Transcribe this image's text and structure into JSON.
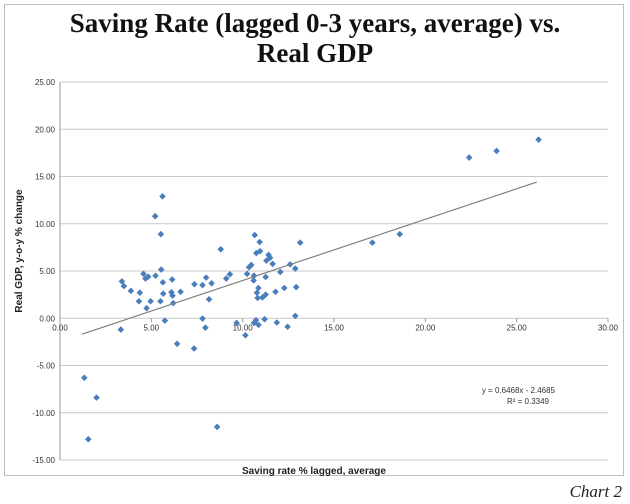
{
  "chart_data": {
    "type": "scatter",
    "title_lines": [
      "Saving Rate (lagged 0-3 years, average) vs.",
      "Real GDP"
    ],
    "xlabel": "Saving rate % lagged, average",
    "ylabel": "Real GDP, y-o-y % change",
    "xlim": [
      0,
      30
    ],
    "ylim": [
      -15,
      25
    ],
    "x_ticks": [
      "0.00",
      "5.00",
      "10.00",
      "15.00",
      "20.00",
      "25.00",
      "30.00"
    ],
    "y_ticks": [
      "25.00",
      "20.00",
      "15.00",
      "10.00",
      "5.00",
      "0.00",
      "-5.00",
      "-10.00",
      "-15.00"
    ],
    "grid": "horizontal",
    "marker_color": "#4a7ebb",
    "trendline": {
      "slope": 0.6468,
      "intercept": -2.4685,
      "x_range": [
        1.2,
        26.1
      ],
      "color": "#7f7f7f"
    },
    "equation_lines": [
      "y = 0.6468x - 2.4685",
      "R² = 0.3349"
    ],
    "points": [
      [
        5.61,
        12.9
      ],
      [
        5.21,
        10.8
      ],
      [
        5.52,
        8.9
      ],
      [
        8.8,
        7.3
      ],
      [
        5.54,
        5.15
      ],
      [
        4.57,
        4.7
      ],
      [
        4.83,
        4.4
      ],
      [
        4.68,
        4.2
      ],
      [
        5.23,
        4.5
      ],
      [
        3.39,
        3.9
      ],
      [
        3.5,
        3.4
      ],
      [
        3.88,
        2.9
      ],
      [
        4.37,
        2.7
      ],
      [
        4.32,
        1.8
      ],
      [
        4.74,
        1.06
      ],
      [
        4.96,
        1.8
      ],
      [
        5.63,
        3.8
      ],
      [
        5.65,
        2.6
      ],
      [
        5.5,
        1.8
      ],
      [
        6.14,
        4.1
      ],
      [
        6.1,
        2.75
      ],
      [
        6.16,
        2.4
      ],
      [
        6.2,
        1.6
      ],
      [
        6.6,
        2.8
      ],
      [
        5.74,
        -0.25
      ],
      [
        3.33,
        -1.2
      ],
      [
        6.41,
        -2.7
      ],
      [
        7.34,
        -3.2
      ],
      [
        7.8,
        -0.03
      ],
      [
        7.96,
        -1.0
      ],
      [
        7.36,
        3.6
      ],
      [
        7.8,
        3.5
      ],
      [
        8.0,
        4.3
      ],
      [
        8.3,
        3.7
      ],
      [
        8.16,
        2.0
      ],
      [
        9.1,
        4.2
      ],
      [
        9.3,
        4.65
      ],
      [
        9.67,
        -0.5
      ],
      [
        10.15,
        -1.8
      ],
      [
        10.66,
        8.8
      ],
      [
        10.93,
        8.07
      ],
      [
        10.95,
        7.1
      ],
      [
        10.75,
        6.9
      ],
      [
        13.15,
        8.0
      ],
      [
        11.42,
        6.7
      ],
      [
        11.5,
        6.4
      ],
      [
        11.3,
        6.1
      ],
      [
        11.64,
        5.75
      ],
      [
        10.47,
        5.64
      ],
      [
        10.35,
        5.4
      ],
      [
        10.24,
        4.7
      ],
      [
        10.62,
        4.5
      ],
      [
        12.06,
        4.9
      ],
      [
        12.6,
        5.7
      ],
      [
        12.88,
        5.26
      ],
      [
        11.26,
        4.37
      ],
      [
        10.6,
        4.0
      ],
      [
        12.93,
        3.3
      ],
      [
        12.28,
        3.2
      ],
      [
        11.8,
        2.8
      ],
      [
        10.86,
        3.2
      ],
      [
        10.78,
        2.7
      ],
      [
        11.26,
        2.5
      ],
      [
        11.08,
        2.2
      ],
      [
        10.82,
        2.15
      ],
      [
        12.88,
        0.25
      ],
      [
        11.2,
        -0.1
      ],
      [
        11.87,
        -0.45
      ],
      [
        12.46,
        -0.9
      ],
      [
        10.73,
        -0.2
      ],
      [
        10.62,
        -0.5
      ],
      [
        10.87,
        -0.7
      ],
      [
        17.1,
        8.0
      ],
      [
        18.6,
        8.9
      ],
      [
        22.4,
        17.0
      ],
      [
        23.9,
        17.7
      ],
      [
        26.2,
        18.9
      ],
      [
        1.33,
        -6.3
      ],
      [
        2.0,
        -8.4
      ],
      [
        1.55,
        -12.8
      ],
      [
        8.6,
        -11.5
      ]
    ]
  },
  "caption": "Chart 2"
}
